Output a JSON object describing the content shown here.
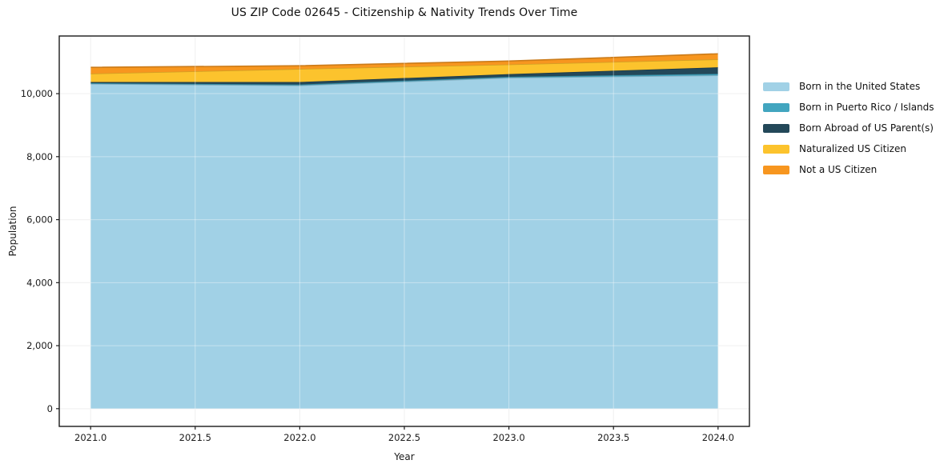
{
  "chart_data": {
    "type": "area",
    "stacked": true,
    "title": "US ZIP Code 02645 - Citizenship & Nativity Trends Over Time",
    "xlabel": "Year",
    "ylabel": "Population",
    "x": [
      2021,
      2022,
      2023,
      2024
    ],
    "series": [
      {
        "name": "Born in the United States",
        "color": "#a1d1e6",
        "values": [
          10310,
          10260,
          10505,
          10580
        ]
      },
      {
        "name": "Born in Puerto Rico / Islands",
        "color": "#42a5bf",
        "values": [
          25,
          30,
          30,
          50
        ]
      },
      {
        "name": "Born Abroad of US Parent(s)",
        "color": "#234859",
        "values": [
          35,
          80,
          85,
          205
        ]
      },
      {
        "name": "Naturalized US Citizen",
        "color": "#fcc32d",
        "values": [
          265,
          415,
          305,
          255
        ]
      },
      {
        "name": "Not a US Citizen",
        "color": "#f7961f",
        "values": [
          200,
          100,
          110,
          175
        ]
      }
    ],
    "xticks": {
      "values": [
        2021,
        2021.5,
        2022,
        2022.5,
        2023,
        2023.5,
        2024
      ],
      "labels": [
        "2021.0",
        "2021.5",
        "2022.0",
        "2022.5",
        "2023.0",
        "2023.5",
        "2024.0"
      ]
    },
    "yticks": {
      "values": [
        0,
        2000,
        4000,
        6000,
        8000,
        10000
      ],
      "labels": [
        "0",
        "2,000",
        "4,000",
        "6,000",
        "8,000",
        "10,000"
      ]
    },
    "xlim": [
      2020.85,
      2024.15
    ],
    "ylim": [
      -563,
      11830
    ],
    "grid": true,
    "legend_position": "right",
    "colors": {
      "grid": "#e8e8e8",
      "frame": "#1a1a1a",
      "tick_text": "#1a1a1a"
    }
  }
}
